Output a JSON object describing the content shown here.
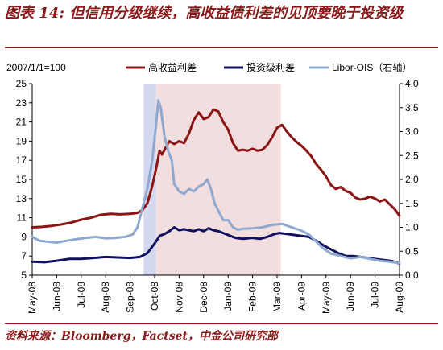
{
  "title": "图表 14: 但信用分级继续，高收益债利差的见顶要晚于投资级",
  "source": "资料来源：Bloomberg，Factset，中金公司研究部",
  "chart_data": {
    "type": "line",
    "index_note": "2007/1/1=100",
    "categories": [
      "May-08",
      "Jun-08",
      "Jul-08",
      "Aug-08",
      "Sep-08",
      "Oct-08",
      "Nov-08",
      "Dec-08",
      "Jan-09",
      "Feb-09",
      "Mar-09",
      "Apr-09",
      "May-09",
      "Jun-09",
      "Jul-09",
      "Aug-09"
    ],
    "ylim_left": [
      5,
      25
    ],
    "yticks_left": [
      5,
      7,
      9,
      11,
      13,
      15,
      17,
      19,
      21,
      23,
      25
    ],
    "ylim_right": [
      0.0,
      4.0
    ],
    "yticks_right": [
      "0.0",
      "0.5",
      "1.0",
      "1.5",
      "2.0",
      "2.5",
      "3.0",
      "3.5",
      "4.0"
    ],
    "legend_position": "top",
    "shaded_regions": [
      {
        "x_start": 4.55,
        "x_end": 5.05,
        "color": "#d3d8ee"
      },
      {
        "x_start": 5.05,
        "x_end": 10.15,
        "color": "#f2dede"
      }
    ],
    "series": [
      {
        "name": "高收益利差",
        "axis": "left",
        "color": "#8b1414",
        "points": [
          [
            0,
            10.0
          ],
          [
            0.4,
            10.05
          ],
          [
            0.8,
            10.15
          ],
          [
            1.2,
            10.3
          ],
          [
            1.6,
            10.5
          ],
          [
            2.0,
            10.8
          ],
          [
            2.4,
            11.0
          ],
          [
            2.8,
            11.3
          ],
          [
            3.2,
            11.4
          ],
          [
            3.6,
            11.35
          ],
          [
            4.0,
            11.4
          ],
          [
            4.3,
            11.5
          ],
          [
            4.5,
            11.8
          ],
          [
            4.7,
            12.5
          ],
          [
            4.9,
            14.3
          ],
          [
            5.05,
            16.0
          ],
          [
            5.2,
            18.0
          ],
          [
            5.3,
            17.6
          ],
          [
            5.45,
            18.3
          ],
          [
            5.6,
            19.0
          ],
          [
            5.8,
            18.7
          ],
          [
            6.0,
            19.0
          ],
          [
            6.2,
            18.8
          ],
          [
            6.4,
            19.8
          ],
          [
            6.6,
            21.2
          ],
          [
            6.8,
            22.0
          ],
          [
            7.0,
            21.3
          ],
          [
            7.2,
            21.5
          ],
          [
            7.4,
            22.3
          ],
          [
            7.6,
            22.1
          ],
          [
            7.8,
            21.0
          ],
          [
            8.0,
            20.2
          ],
          [
            8.2,
            18.8
          ],
          [
            8.4,
            18.0
          ],
          [
            8.6,
            18.1
          ],
          [
            8.8,
            18.0
          ],
          [
            9.0,
            18.2
          ],
          [
            9.2,
            18.0
          ],
          [
            9.4,
            18.1
          ],
          [
            9.6,
            18.6
          ],
          [
            9.8,
            19.4
          ],
          [
            10.0,
            20.4
          ],
          [
            10.2,
            20.7
          ],
          [
            10.4,
            20.0
          ],
          [
            10.6,
            19.4
          ],
          [
            10.8,
            18.9
          ],
          [
            11.0,
            18.5
          ],
          [
            11.2,
            18.0
          ],
          [
            11.4,
            17.4
          ],
          [
            11.6,
            16.6
          ],
          [
            11.8,
            16.0
          ],
          [
            12.0,
            15.3
          ],
          [
            12.2,
            14.4
          ],
          [
            12.4,
            14.0
          ],
          [
            12.6,
            14.2
          ],
          [
            12.8,
            13.8
          ],
          [
            13.0,
            13.6
          ],
          [
            13.2,
            13.1
          ],
          [
            13.4,
            12.9
          ],
          [
            13.6,
            13.0
          ],
          [
            13.8,
            13.2
          ],
          [
            14.0,
            13.0
          ],
          [
            14.2,
            12.7
          ],
          [
            14.4,
            12.9
          ],
          [
            14.6,
            12.4
          ],
          [
            14.8,
            11.9
          ],
          [
            15.0,
            11.2
          ]
        ]
      },
      {
        "name": "投资级利差",
        "axis": "left",
        "color": "#10105e",
        "points": [
          [
            0,
            6.4
          ],
          [
            0.5,
            6.35
          ],
          [
            1.0,
            6.5
          ],
          [
            1.5,
            6.7
          ],
          [
            2.0,
            6.7
          ],
          [
            2.5,
            6.8
          ],
          [
            3.0,
            6.9
          ],
          [
            3.5,
            6.85
          ],
          [
            4.0,
            6.8
          ],
          [
            4.4,
            6.9
          ],
          [
            4.7,
            7.3
          ],
          [
            5.0,
            8.3
          ],
          [
            5.2,
            9.1
          ],
          [
            5.4,
            9.3
          ],
          [
            5.6,
            9.6
          ],
          [
            5.8,
            10.0
          ],
          [
            6.0,
            9.7
          ],
          [
            6.2,
            9.8
          ],
          [
            6.4,
            9.7
          ],
          [
            6.6,
            9.6
          ],
          [
            6.8,
            9.8
          ],
          [
            7.0,
            9.6
          ],
          [
            7.2,
            9.9
          ],
          [
            7.4,
            9.7
          ],
          [
            7.6,
            9.6
          ],
          [
            7.8,
            9.4
          ],
          [
            8.0,
            9.2
          ],
          [
            8.3,
            8.9
          ],
          [
            8.6,
            8.8
          ],
          [
            9.0,
            8.9
          ],
          [
            9.3,
            8.8
          ],
          [
            9.6,
            9.0
          ],
          [
            9.9,
            9.3
          ],
          [
            10.1,
            9.4
          ],
          [
            10.4,
            9.3
          ],
          [
            10.7,
            9.2
          ],
          [
            11.0,
            9.1
          ],
          [
            11.3,
            9.0
          ],
          [
            11.6,
            8.6
          ],
          [
            11.9,
            8.1
          ],
          [
            12.2,
            7.7
          ],
          [
            12.5,
            7.3
          ],
          [
            12.8,
            7.0
          ],
          [
            13.1,
            7.0
          ],
          [
            13.4,
            6.9
          ],
          [
            13.7,
            6.8
          ],
          [
            14.0,
            6.7
          ],
          [
            14.3,
            6.6
          ],
          [
            14.6,
            6.5
          ],
          [
            14.8,
            6.4
          ],
          [
            15.0,
            6.2
          ]
        ]
      },
      {
        "name": "Libor-OIS（右轴）",
        "axis": "right",
        "color": "#8fa8d0",
        "points": [
          [
            0,
            0.8
          ],
          [
            0.3,
            0.72
          ],
          [
            0.6,
            0.7
          ],
          [
            1.0,
            0.68
          ],
          [
            1.4,
            0.72
          ],
          [
            1.8,
            0.75
          ],
          [
            2.2,
            0.78
          ],
          [
            2.6,
            0.8
          ],
          [
            3.0,
            0.77
          ],
          [
            3.4,
            0.78
          ],
          [
            3.8,
            0.8
          ],
          [
            4.1,
            0.85
          ],
          [
            4.3,
            1.0
          ],
          [
            4.5,
            1.4
          ],
          [
            4.7,
            1.8
          ],
          [
            4.9,
            2.4
          ],
          [
            5.05,
            3.1
          ],
          [
            5.15,
            3.65
          ],
          [
            5.25,
            3.5
          ],
          [
            5.4,
            2.9
          ],
          [
            5.55,
            2.6
          ],
          [
            5.7,
            2.4
          ],
          [
            5.8,
            1.9
          ],
          [
            6.0,
            1.75
          ],
          [
            6.2,
            1.7
          ],
          [
            6.4,
            1.8
          ],
          [
            6.6,
            1.75
          ],
          [
            6.8,
            1.85
          ],
          [
            7.0,
            1.9
          ],
          [
            7.15,
            2.0
          ],
          [
            7.3,
            1.8
          ],
          [
            7.45,
            1.5
          ],
          [
            7.6,
            1.35
          ],
          [
            7.8,
            1.15
          ],
          [
            8.0,
            1.15
          ],
          [
            8.2,
            1.0
          ],
          [
            8.4,
            0.95
          ],
          [
            8.6,
            0.97
          ],
          [
            9.0,
            0.98
          ],
          [
            9.4,
            1.0
          ],
          [
            9.8,
            1.05
          ],
          [
            10.2,
            1.07
          ],
          [
            10.6,
            1.0
          ],
          [
            11.0,
            0.93
          ],
          [
            11.3,
            0.85
          ],
          [
            11.6,
            0.7
          ],
          [
            11.9,
            0.55
          ],
          [
            12.2,
            0.45
          ],
          [
            12.6,
            0.4
          ],
          [
            13.0,
            0.35
          ],
          [
            13.4,
            0.38
          ],
          [
            13.8,
            0.34
          ],
          [
            14.2,
            0.3
          ],
          [
            14.6,
            0.28
          ],
          [
            15.0,
            0.25
          ]
        ]
      }
    ]
  }
}
